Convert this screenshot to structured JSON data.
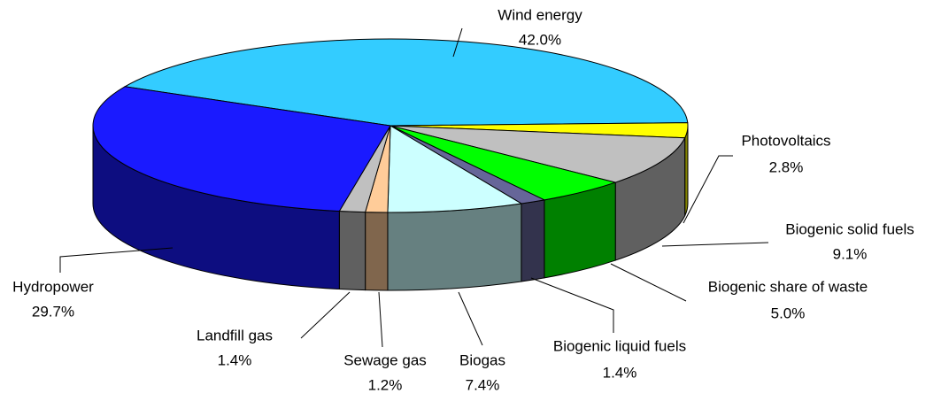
{
  "chart_data": {
    "type": "pie",
    "categories": [
      "Wind energy",
      "Photovoltaics",
      "Biogenic solid fuels",
      "Biogenic share of waste",
      "Biogenic liquid fuels",
      "Biogas",
      "Sewage gas",
      "Landfill gas",
      "Hydropower"
    ],
    "values": [
      42.0,
      2.8,
      9.1,
      5.0,
      1.4,
      7.4,
      1.2,
      1.4,
      29.7
    ],
    "value_labels": [
      "42.0%",
      "2.8%",
      "9.1%",
      "5.0%",
      "1.4%",
      "7.4%",
      "1.2%",
      "1.4%",
      "29.7%"
    ],
    "colors": [
      "#33ccff",
      "#ffff00",
      "#c0c0c0",
      "#00ff00",
      "#666699",
      "#ccffff",
      "#ffcc99",
      "#c0c0c0",
      "#1a1aff"
    ]
  }
}
